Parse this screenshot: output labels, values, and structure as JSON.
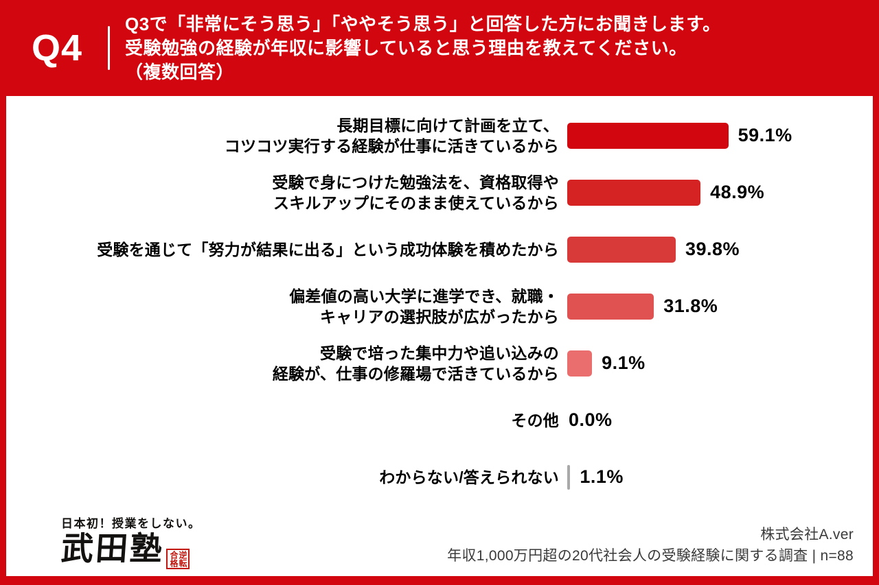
{
  "header": {
    "q_label": "Q4",
    "question": "Q3で「非常にそう思う」「ややそう思う」と回答した方にお聞きします。\n受験勉強の経験が年収に影響していると思う理由を教えてください。\n（複数回答）"
  },
  "chart_data": {
    "type": "bar",
    "orientation": "horizontal",
    "unit": "%",
    "xlim": [
      0,
      100
    ],
    "categories": [
      "長期目標に向けて計画を立て、\nコツコツ実行する経験が仕事に活きているから",
      "受験で身につけた勉強法を、資格取得や\nスキルアップにそのまま使えているから",
      "受験を通じて「努力が結果に出る」という成功体験を積めたから",
      "偏差値の高い大学に進学でき、就職・\nキャリアの選択肢が広がったから",
      "受験で培った集中力や追い込みの\n経験が、仕事の修羅場で活きているから",
      "その他",
      "わからない/答えられない"
    ],
    "values": [
      59.1,
      48.9,
      39.8,
      31.8,
      9.1,
      0.0,
      1.1
    ],
    "value_labels": [
      "59.1%",
      "48.9%",
      "39.8%",
      "31.8%",
      "9.1%",
      "0.0%",
      "1.1%"
    ],
    "bar_colors": [
      "#d2060f",
      "#d52222",
      "#d83a3a",
      "#e05252",
      "#ea6e6e",
      "#a9a9a9",
      "#a9a9a9"
    ],
    "accent_color": "#d2060f",
    "legend": null,
    "grid": false
  },
  "footer": {
    "logo": {
      "tagline": "日本初！授業をしない。",
      "brand": "武田塾",
      "seal_right": "逆転",
      "seal_left": "合格"
    },
    "company": "株式会社A.ver",
    "source": "年収1,000万円超の20代社会人の受験経験に関する調査 | n=88"
  }
}
